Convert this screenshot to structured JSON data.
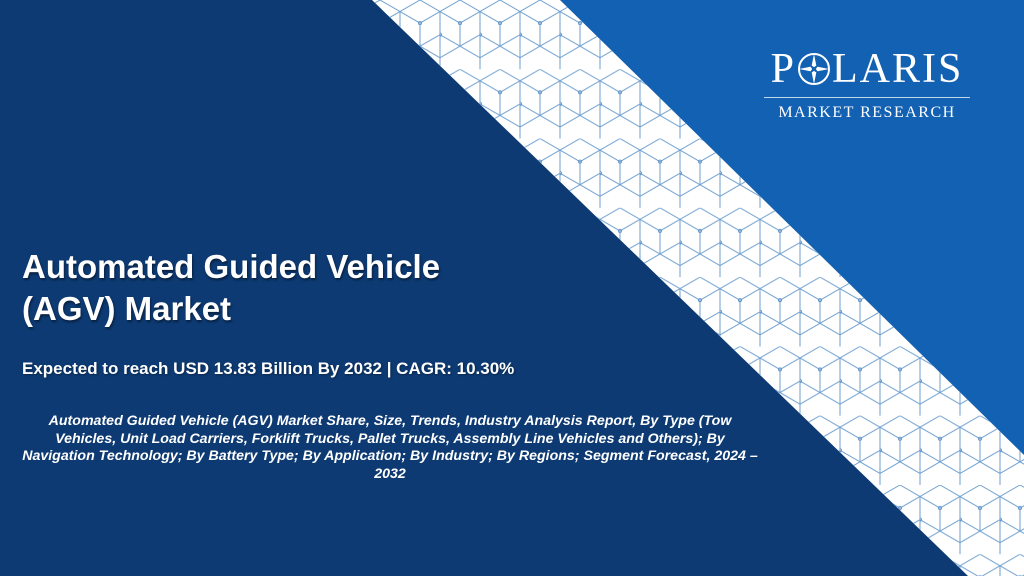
{
  "logo": {
    "wordmark_left": "P",
    "wordmark_right": "LARIS",
    "tagline": "MARKET RESEARCH",
    "icon": "compass-star-icon"
  },
  "report": {
    "title_line1": "Automated Guided Vehicle",
    "title_line2": "(AGV) Market",
    "subtitle": "Expected to reach USD 13.83 Billion By 2032 | CAGR: 10.30%",
    "description": "Automated Guided Vehicle (AGV) Market Share, Size, Trends, Industry Analysis Report, By Type (Tow Vehicles, Unit Load Carriers, Forklift Trucks, Pallet Trucks, Assembly Line Vehicles and Others); By Navigation Technology; By Battery Type; By Application; By Industry; By Regions; Segment Forecast, 2024 – 2032"
  },
  "colors": {
    "navy_background": "#0d3a73",
    "blue_background": "#1361b3",
    "stripe": "#ffffff",
    "lattice_lines": "#6e9fcf"
  }
}
